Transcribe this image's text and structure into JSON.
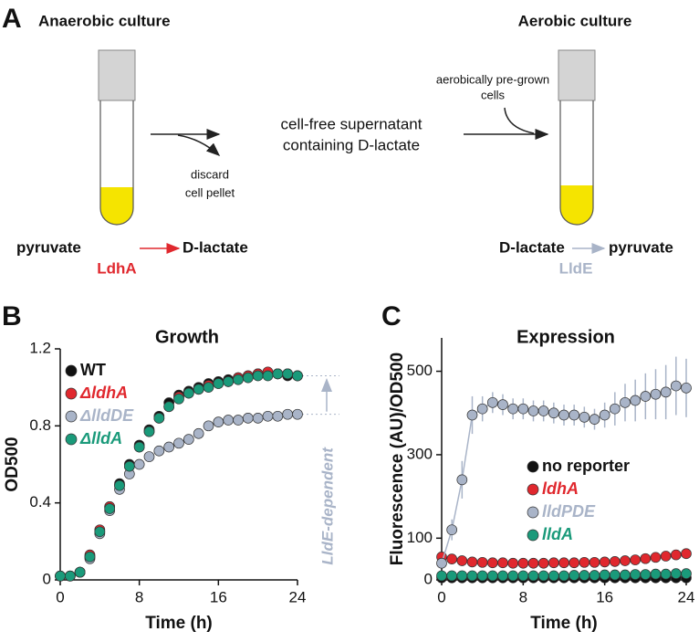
{
  "panel_a": {
    "label": "A",
    "left_title": "Anaerobic culture",
    "right_title": "Aerobic culture",
    "discard_note": [
      "discard",
      "cell pellet"
    ],
    "supernatant": [
      "cell-free supernatant",
      "containing D-lactate"
    ],
    "pregrown": [
      "aerobically pre-grown",
      "cells"
    ],
    "left_reaction": {
      "substrate": "pyruvate",
      "product": "D-lactate",
      "enzyme": "LdhA"
    },
    "right_reaction": {
      "substrate": "D-lactate",
      "product": "pyruvate",
      "enzyme": "LldE"
    }
  },
  "chart_data": [
    {
      "type": "scatter",
      "panel_label": "B",
      "title": "Growth",
      "x_label": "Time (h)",
      "y_label": "OD500",
      "annotation": "LldE-dependent",
      "legend": "upper left",
      "xlim": [
        0,
        24
      ],
      "xticks": [
        0,
        8,
        16,
        24
      ],
      "ylim": [
        0,
        1.2
      ],
      "yticks": [
        0,
        0.4,
        0.8,
        1.2
      ],
      "x": [
        0,
        1,
        2,
        3,
        4,
        5,
        6,
        7,
        8,
        9,
        10,
        11,
        12,
        13,
        14,
        15,
        16,
        17,
        18,
        19,
        20,
        21,
        22,
        23,
        24
      ],
      "series": [
        {
          "name": "WT",
          "color": "#111111",
          "values": [
            0.02,
            0.02,
            0.04,
            0.12,
            0.25,
            0.38,
            0.5,
            0.6,
            0.7,
            0.78,
            0.85,
            0.92,
            0.96,
            0.98,
            1.0,
            1.02,
            1.03,
            1.04,
            1.05,
            1.06,
            1.07,
            1.07,
            1.07,
            1.06,
            1.06
          ]
        },
        {
          "name": "ΔldhA",
          "color": "#e0282e",
          "values": [
            0.02,
            0.02,
            0.04,
            0.13,
            0.26,
            0.38,
            0.49,
            0.59,
            0.69,
            0.77,
            0.84,
            0.9,
            0.95,
            0.97,
            0.99,
            1.01,
            1.02,
            1.03,
            1.05,
            1.06,
            1.07,
            1.08,
            1.07,
            1.07,
            1.06
          ]
        },
        {
          "name": "ΔlldDE",
          "color": "#a9b4c8",
          "values": [
            0.02,
            0.02,
            0.04,
            0.11,
            0.24,
            0.36,
            0.47,
            0.55,
            0.6,
            0.64,
            0.67,
            0.69,
            0.71,
            0.73,
            0.76,
            0.8,
            0.82,
            0.83,
            0.83,
            0.84,
            0.84,
            0.85,
            0.85,
            0.86,
            0.86
          ]
        },
        {
          "name": "ΔlldA",
          "color": "#1a9a7a",
          "values": [
            0.02,
            0.02,
            0.04,
            0.12,
            0.25,
            0.37,
            0.49,
            0.59,
            0.69,
            0.77,
            0.84,
            0.9,
            0.94,
            0.97,
            0.99,
            1.0,
            1.02,
            1.03,
            1.04,
            1.05,
            1.06,
            1.06,
            1.07,
            1.07,
            1.06
          ]
        }
      ]
    },
    {
      "type": "scatter",
      "panel_label": "C",
      "title": "Expression",
      "x_label": "Time (h)",
      "y_label": "Fluorescence (AU)/OD500",
      "legend": "lower right",
      "xlim": [
        0,
        24
      ],
      "xticks": [
        0,
        8,
        16,
        24
      ],
      "ylim": [
        0,
        580
      ],
      "yticks": [
        0,
        100,
        300,
        500
      ],
      "x": [
        0,
        1,
        2,
        3,
        4,
        5,
        6,
        7,
        8,
        9,
        10,
        11,
        12,
        13,
        14,
        15,
        16,
        17,
        18,
        19,
        20,
        21,
        22,
        23,
        24
      ],
      "series": [
        {
          "name": "no reporter",
          "color": "#111111",
          "values": [
            5,
            5,
            5,
            5,
            5,
            5,
            5,
            5,
            5,
            5,
            5,
            5,
            5,
            5,
            5,
            5,
            5,
            5,
            5,
            5,
            5,
            5,
            5,
            5,
            5
          ]
        },
        {
          "name": "ldhA",
          "color": "#e0282e",
          "values": [
            55,
            50,
            46,
            43,
            42,
            41,
            41,
            40,
            40,
            40,
            40,
            41,
            41,
            41,
            42,
            42,
            43,
            44,
            46,
            48,
            51,
            54,
            57,
            60,
            63
          ]
        },
        {
          "name": "lldPDE",
          "color": "#a9b4c8",
          "connect": true,
          "values": [
            40,
            120,
            240,
            395,
            410,
            425,
            420,
            410,
            410,
            405,
            405,
            400,
            395,
            395,
            390,
            385,
            395,
            410,
            425,
            430,
            440,
            445,
            450,
            465,
            460
          ],
          "errors": [
            10,
            25,
            45,
            45,
            30,
            25,
            25,
            25,
            25,
            25,
            25,
            25,
            25,
            25,
            25,
            25,
            30,
            40,
            45,
            50,
            55,
            60,
            65,
            70,
            70
          ]
        },
        {
          "name": "lldA",
          "color": "#1a9a7a",
          "values": [
            10,
            10,
            10,
            10,
            10,
            10,
            10,
            10,
            10,
            10,
            10,
            10,
            10,
            11,
            11,
            11,
            12,
            12,
            12,
            13,
            13,
            14,
            14,
            15,
            15
          ]
        }
      ]
    }
  ]
}
